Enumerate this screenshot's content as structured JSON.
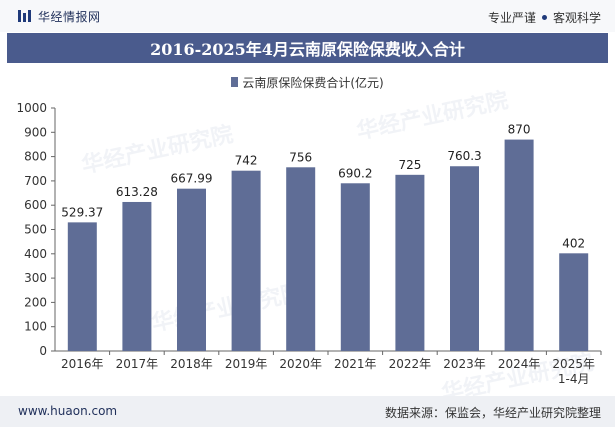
{
  "header": {
    "brand_name": "华经情报网",
    "tagline_left": "专业严谨",
    "tagline_right": "客观科学"
  },
  "watermark_text": "华经产业研究院",
  "chart_data": {
    "type": "bar",
    "title": "2016-2025年4月云南原保险保费收入合计",
    "series": [
      {
        "name": "云南原保险保费合计(亿元)",
        "values": [
          529.37,
          613.28,
          667.99,
          742,
          756,
          690.2,
          725,
          760.3,
          870,
          402
        ]
      }
    ],
    "categories": [
      "2016年",
      "2017年",
      "2018年",
      "2019年",
      "2020年",
      "2021年",
      "2022年",
      "2023年",
      "2024年",
      "2025年\n1-4月"
    ],
    "value_labels": [
      "529.37",
      "613.28",
      "667.99",
      "742",
      "756",
      "690.2",
      "725",
      "760.3",
      "870",
      "402"
    ],
    "yticks": [
      "0",
      "100",
      "200",
      "300",
      "400",
      "500",
      "600",
      "700",
      "800",
      "900",
      "1000"
    ],
    "ylim": [
      0,
      1000
    ],
    "xlabel": "",
    "ylabel": "",
    "grid": false,
    "legend_position": "top-center",
    "bar_color": "#5f6d96"
  },
  "footer": {
    "url": "www.huaon.com",
    "source": "数据来源：保监会，华经产业研究院整理"
  }
}
